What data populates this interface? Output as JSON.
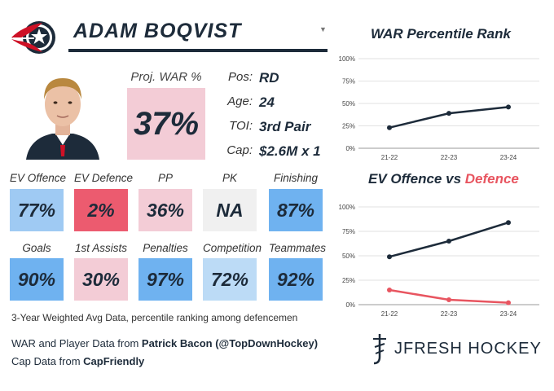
{
  "colors": {
    "navy": "#1d2b3a",
    "red_line": "#e85560",
    "tile_dark_blue": "#6fb2f0",
    "tile_mid_blue": "#9fcaf3",
    "tile_light_blue": "#bcdbf6",
    "tile_pink": "#f3ccd6",
    "tile_red": "#ec5b6f",
    "tile_gray": "#f0f0f0"
  },
  "header": {
    "team_logo_icon": "blue-jackets-logo-icon",
    "player_name": "ADAM BOQVIST",
    "dropdown_glyph": "▼"
  },
  "headshot": {
    "icon": "player-headshot-icon"
  },
  "proj_war": {
    "label": "Proj. WAR %",
    "value": "37%",
    "color": "#f3ccd6"
  },
  "info": [
    {
      "key": "Pos:",
      "value": "RD"
    },
    {
      "key": "Age:",
      "value": "24"
    },
    {
      "key": "TOI:",
      "value": "3rd Pair"
    },
    {
      "key": "Cap:",
      "value": "$2.6M x 1"
    }
  ],
  "metrics_row1": [
    {
      "label": "EV Offence",
      "value": "77%",
      "color": "#9fcaf3"
    },
    {
      "label": "EV Defence",
      "value": "2%",
      "color": "#ec5b6f"
    },
    {
      "label": "PP",
      "value": "36%",
      "color": "#f3ccd6"
    },
    {
      "label": "PK",
      "value": "NA",
      "color": "#f0f0f0"
    },
    {
      "label": "Finishing",
      "value": "87%",
      "color": "#6fb2f0"
    }
  ],
  "metrics_row2": [
    {
      "label": "Goals",
      "value": "90%",
      "color": "#6fb2f0"
    },
    {
      "label": "1st Assists",
      "value": "30%",
      "color": "#f3ccd6"
    },
    {
      "label": "Penalties",
      "value": "97%",
      "color": "#6fb2f0"
    },
    {
      "label": "Competition",
      "value": "72%",
      "color": "#bcdbf6"
    },
    {
      "label": "Teammates",
      "value": "92%",
      "color": "#6fb2f0"
    }
  ],
  "footer": {
    "note": "3-Year Weighted Avg Data, percentile ranking among defencemen",
    "war_credit_prefix": "WAR and Player Data from ",
    "war_credit_source": "Patrick Bacon (@TopDownHockey)",
    "cap_credit_prefix": "Cap Data from ",
    "cap_credit_source": "CapFriendly"
  },
  "brand": {
    "text": "JFRESH HOCKEY",
    "icon": "jfresh-logo-icon"
  },
  "charts": {
    "war_title": "WAR Percentile Rank",
    "ev_title_part1": "EV Offence",
    "ev_title_part2": " vs ",
    "ev_title_part3": "Defence"
  },
  "chart_data": [
    {
      "type": "line",
      "title": "WAR Percentile Rank",
      "categories": [
        "21-22",
        "22-23",
        "23-24"
      ],
      "y_ticks": [
        "0%",
        "25%",
        "50%",
        "75%",
        "100%"
      ],
      "ylim": [
        0,
        100
      ],
      "grid": true,
      "series": [
        {
          "values": [
            23,
            39,
            46
          ],
          "color": "#1d2b3a"
        }
      ]
    },
    {
      "type": "line",
      "title": "EV Offence vs Defence",
      "categories": [
        "21-22",
        "22-23",
        "23-24"
      ],
      "y_ticks": [
        "0%",
        "25%",
        "50%",
        "75%",
        "100%"
      ],
      "ylim": [
        0,
        100
      ],
      "grid": true,
      "series": [
        {
          "values": [
            49,
            65,
            84
          ],
          "color": "#1d2b3a"
        },
        {
          "values": [
            15,
            5,
            2
          ],
          "color": "#e85560"
        }
      ]
    }
  ]
}
